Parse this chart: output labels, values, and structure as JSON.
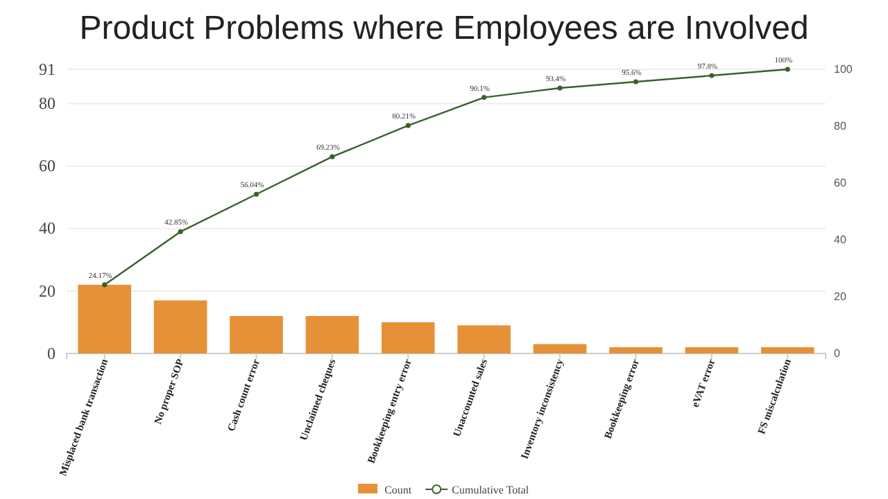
{
  "chart_data": {
    "type": "bar",
    "title": "Product Problems where Employees are Involved",
    "categories": [
      "Misplaced bank transaction",
      "No proper SOP",
      "Cash count error",
      "Unclaimed cheques",
      "Bookkeeping entry error",
      "Unaccounted sales",
      "Inventory inconsistency",
      "Bookkeeping error",
      "eVAT error",
      "FS miscalculation"
    ],
    "series": [
      {
        "name": "Count",
        "color": "#e69138",
        "values": [
          22,
          17,
          12,
          12,
          10,
          9,
          3,
          2,
          2,
          2
        ]
      },
      {
        "name": "Cumulative Total",
        "type": "line",
        "axis": "y2",
        "color": "#38612a",
        "marker": "circle",
        "values": [
          24.17,
          42.85,
          56.04,
          69.23,
          80.21,
          90.1,
          93.4,
          95.6,
          97.8,
          100
        ],
        "value_labels": [
          "24.17%",
          "42.85%",
          "56.04%",
          "69.23%",
          "80.21%",
          "90.1%",
          "93.4%",
          "95.6%",
          "97.8%",
          "100%"
        ]
      }
    ],
    "ylim": [
      0,
      91
    ],
    "yticks": [
      0,
      20,
      40,
      60,
      80,
      91
    ],
    "y2lim": [
      0,
      100
    ],
    "y2ticks": [
      0,
      20,
      40,
      60,
      80,
      100
    ],
    "grid": "y",
    "legend": "bottom"
  }
}
